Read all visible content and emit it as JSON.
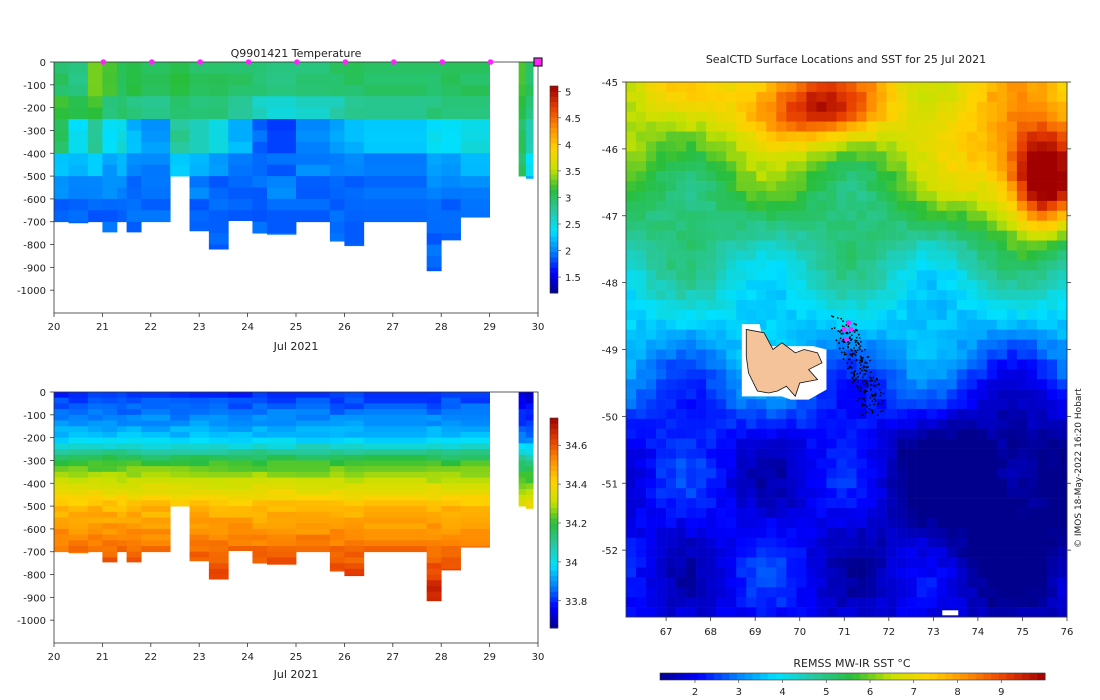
{
  "chart_data": [
    {
      "type": "heatmap",
      "id": "temperature_section",
      "title": "Q9901421  Temperature",
      "xlabel": "Jul 2021",
      "x_ticks": [
        "20",
        "21",
        "22",
        "23",
        "24",
        "25",
        "26",
        "27",
        "28",
        "29",
        "30"
      ],
      "xlim": [
        20,
        30
      ],
      "ylim": [
        -1100,
        0
      ],
      "y_ticks": [
        "0",
        "-100",
        "-200",
        "-300",
        "-400",
        "-500",
        "-600",
        "-700",
        "-800",
        "-900",
        "-1000"
      ],
      "y_tick_values": [
        0,
        -100,
        -200,
        -300,
        -400,
        -500,
        -600,
        -700,
        -800,
        -900,
        -1000
      ],
      "colorbar": {
        "min": 1.2,
        "max": 5.1,
        "ticks": [
          "1.5",
          "2",
          "2.5",
          "3",
          "3.5",
          "4",
          "4.5",
          "5"
        ],
        "tick_values": [
          1.5,
          2,
          2.5,
          3,
          3.5,
          4,
          4.5,
          5
        ]
      },
      "profile_markers_x": [
        21,
        22,
        23,
        24,
        25,
        26,
        27,
        28,
        29
      ],
      "last_marker_x": 30,
      "marker_color": "#ff22ff",
      "profiles": [
        {
          "x0": 20.0,
          "x1": 20.3,
          "depth": 700
        },
        {
          "x0": 20.3,
          "x1": 20.7,
          "depth": 705
        },
        {
          "x0": 20.7,
          "x1": 21.0,
          "depth": 700
        },
        {
          "x0": 21.0,
          "x1": 21.3,
          "depth": 745
        },
        {
          "x0": 21.3,
          "x1": 21.5,
          "depth": 700
        },
        {
          "x0": 21.5,
          "x1": 21.8,
          "depth": 745
        },
        {
          "x0": 21.8,
          "x1": 22.4,
          "depth": 700
        },
        {
          "x0": 22.4,
          "x1": 22.8,
          "depth": 500
        },
        {
          "x0": 22.8,
          "x1": 23.2,
          "depth": 740
        },
        {
          "x0": 23.2,
          "x1": 23.6,
          "depth": 820
        },
        {
          "x0": 23.6,
          "x1": 24.1,
          "depth": 695
        },
        {
          "x0": 24.1,
          "x1": 24.4,
          "depth": 750
        },
        {
          "x0": 24.4,
          "x1": 25.0,
          "depth": 755
        },
        {
          "x0": 25.0,
          "x1": 25.7,
          "depth": 700
        },
        {
          "x0": 25.7,
          "x1": 26.0,
          "depth": 785
        },
        {
          "x0": 26.0,
          "x1": 26.4,
          "depth": 805
        },
        {
          "x0": 26.4,
          "x1": 27.7,
          "depth": 700
        },
        {
          "x0": 27.7,
          "x1": 28.0,
          "depth": 915
        },
        {
          "x0": 28.0,
          "x1": 28.4,
          "depth": 780
        },
        {
          "x0": 28.4,
          "x1": 29.0,
          "depth": 680
        },
        {
          "x0": 29.6,
          "x1": 29.75,
          "depth": 500
        },
        {
          "x0": 29.75,
          "x1": 29.9,
          "depth": 510
        }
      ],
      "profile_values": [
        [
          3.0,
          3.2,
          3.0,
          2.3,
          2.1,
          1.9
        ],
        [
          2.9,
          3.1,
          2.4,
          2.2,
          2.0,
          1.9
        ],
        [
          3.3,
          3.2,
          2.8,
          2.3,
          2.0,
          1.9
        ],
        [
          3.2,
          2.9,
          2.4,
          2.1,
          2.0,
          1.9
        ],
        [
          3.0,
          3.0,
          2.5,
          2.2,
          2.0,
          1.9
        ],
        [
          3.1,
          2.9,
          2.2,
          2.0,
          1.9,
          1.9
        ],
        [
          3.0,
          2.8,
          2.1,
          2.0,
          2.0,
          1.9
        ],
        [
          3.1,
          3.0,
          2.8,
          2.3,
          2.0,
          1.9
        ],
        [
          3.0,
          2.9,
          2.6,
          2.2,
          2.0,
          1.9
        ],
        [
          3.0,
          2.9,
          2.5,
          2.1,
          1.9,
          1.9
        ],
        [
          3.0,
          2.8,
          2.2,
          2.0,
          1.9,
          1.9
        ],
        [
          2.9,
          2.6,
          1.9,
          1.9,
          1.9,
          1.9
        ],
        [
          2.9,
          2.5,
          1.8,
          1.9,
          2.0,
          1.9
        ],
        [
          2.9,
          2.6,
          2.0,
          2.0,
          1.9,
          1.9
        ],
        [
          3.0,
          2.7,
          2.1,
          2.0,
          1.9,
          1.9
        ],
        [
          3.0,
          2.8,
          2.2,
          2.0,
          1.9,
          1.9
        ],
        [
          3.0,
          2.8,
          2.3,
          2.0,
          1.9,
          1.9
        ],
        [
          3.0,
          2.9,
          2.4,
          2.1,
          2.0,
          1.9
        ],
        [
          3.0,
          2.9,
          2.4,
          2.1,
          2.0,
          1.9
        ],
        [
          3.0,
          2.9,
          2.5,
          2.2,
          2.0,
          1.9
        ],
        [
          3.2,
          3.1,
          3.0,
          3.0,
          2.5,
          2.2
        ],
        [
          3.0,
          2.9,
          2.7,
          2.4,
          2.2,
          2.0
        ]
      ]
    },
    {
      "type": "heatmap",
      "id": "salinity_section",
      "title": "",
      "xlabel": "Jul 2021",
      "x_ticks": [
        "20",
        "21",
        "22",
        "23",
        "24",
        "25",
        "26",
        "27",
        "28",
        "29",
        "30"
      ],
      "xlim": [
        20,
        30
      ],
      "ylim": [
        -1100,
        0
      ],
      "y_ticks": [
        "0",
        "-100",
        "-200",
        "-300",
        "-400",
        "-500",
        "-600",
        "-700",
        "-800",
        "-900",
        "-1000"
      ],
      "y_tick_values": [
        0,
        -100,
        -200,
        -300,
        -400,
        -500,
        -600,
        -700,
        -800,
        -900,
        -1000
      ],
      "colorbar": {
        "min": 33.66,
        "max": 34.74,
        "ticks": [
          "33.8",
          "34",
          "34.2",
          "34.4",
          "34.6"
        ],
        "tick_values": [
          33.8,
          34,
          34.2,
          34.4,
          34.6
        ]
      }
    },
    {
      "type": "heatmap",
      "id": "sst_map",
      "title": "SealCTD Surface Locations and SST for 25 Jul 2021",
      "xlabel": "",
      "x_ticks": [
        "67",
        "68",
        "69",
        "70",
        "71",
        "72",
        "73",
        "74",
        "75",
        "76"
      ],
      "x_tick_values": [
        67,
        68,
        69,
        70,
        71,
        72,
        73,
        74,
        75,
        76
      ],
      "xlim": [
        66.1,
        76.0
      ],
      "ylim": [
        -53.0,
        -45.0
      ],
      "y_ticks": [
        "-45",
        "-46",
        "-47",
        "-48",
        "-49",
        "-50",
        "-51",
        "-52"
      ],
      "y_tick_values": [
        -45,
        -46,
        -47,
        -48,
        -49,
        -50,
        -51,
        -52
      ],
      "colorbar": {
        "label": "REMSS MW-IR SST °C",
        "min": 1.2,
        "max": 10.0,
        "ticks": [
          "2",
          "3",
          "4",
          "5",
          "6",
          "7",
          "8",
          "9"
        ],
        "tick_values": [
          2,
          3,
          4,
          5,
          6,
          7,
          8,
          9
        ]
      },
      "land_color": "#f4c39a",
      "seal_track_color": "#000000",
      "recent_fix_color": "#ff22ff",
      "recent_fixes": [
        [
          71.1,
          -48.6
        ],
        [
          71.15,
          -48.7
        ],
        [
          71.05,
          -48.85
        ],
        [
          71.0,
          -48.7
        ]
      ]
    }
  ],
  "credit": "© IMOS 18-May-2022 16:20 Hobart"
}
